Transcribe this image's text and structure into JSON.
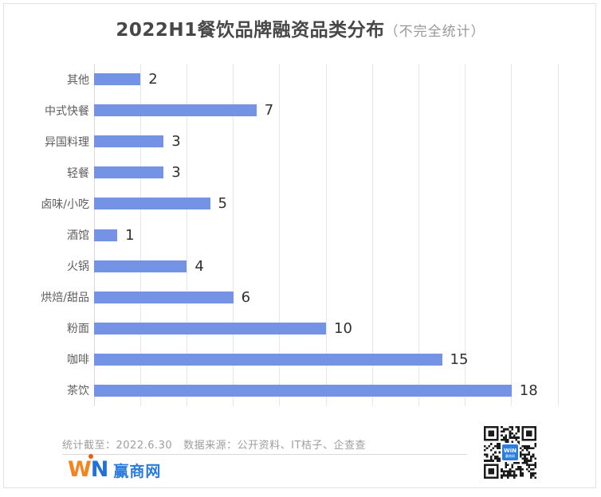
{
  "title": {
    "main": "2022H1餐饮品牌融资品类分布",
    "note": "（不完全统计）"
  },
  "chart_data": {
    "type": "bar",
    "orientation": "horizontal",
    "title": "2022H1餐饮品牌融资品类分布（不完全统计）",
    "categories": [
      "其他",
      "中式快餐",
      "异国料理",
      "轻餐",
      "卤味/小吃",
      "酒馆",
      "火锅",
      "烘焙/甜品",
      "粉面",
      "咖啡",
      "茶饮"
    ],
    "values": [
      2,
      7,
      3,
      3,
      5,
      1,
      4,
      6,
      10,
      15,
      18
    ],
    "xlabel": "",
    "ylabel": "",
    "xlim": [
      0,
      20
    ],
    "grid_step": 2,
    "grid": true,
    "legend": false,
    "value_labels": true
  },
  "footer": {
    "stat_until": "统计截至：2022.6.30",
    "data_source": "数据来源：公开资料、IT桔子、企查查"
  },
  "logo": {
    "letter_w": "W",
    "letter_n": "N",
    "brand_cn": "赢商网"
  },
  "qr": {
    "icon": "qr-code",
    "badge_line1": "WiN",
    "badge_line2": "赢商网"
  },
  "colors": {
    "bar": "#7493E4",
    "gridline": "#E7E7E7",
    "axis_line": "#D9D9D9",
    "title": "#474747",
    "title_note": "#989898",
    "category_label": "#5E5E5E",
    "value_label": "#303030",
    "footer_text": "#9E9E9E",
    "card_border": "#E3E3E3",
    "divider": "#DBDBDB",
    "logo_orange": "#F5841C",
    "logo_dot": "#E95D0F",
    "logo_blue": "#1F71DF",
    "brand_blue": "#2A7BE0",
    "qr_dark": "#1B1B1B",
    "qr_badge_blue": "#2A7DE1"
  }
}
